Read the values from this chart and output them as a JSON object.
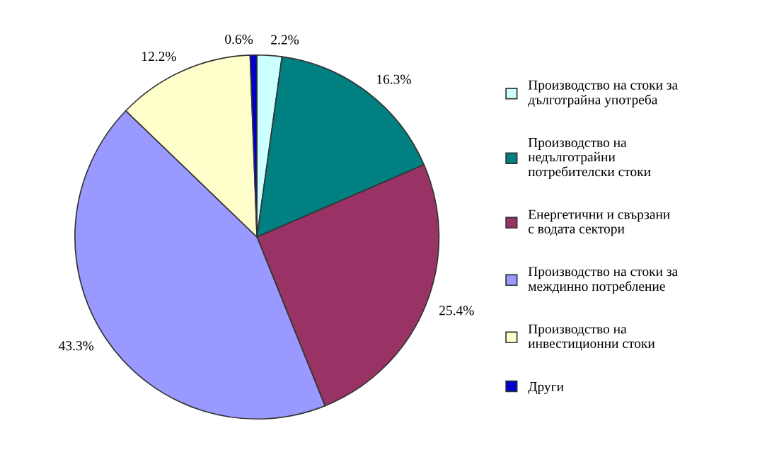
{
  "chart_data": {
    "type": "pie",
    "categories": [
      "Производство на стоки за\nдълготрайна употреба",
      "Производство на\nнедълготрайни\nпотребителски стоки",
      "Енергетични и свързани\nс водата сектори",
      "Производство на стоки за\nмеждинно потребление",
      "Производство на\nинвестиционни стоки",
      "Други"
    ],
    "values": [
      2.2,
      16.3,
      25.4,
      43.3,
      12.2,
      0.6
    ],
    "colors": [
      "#ccffff",
      "#008080",
      "#993366",
      "#9999ff",
      "#ffffcc",
      "#0000cc"
    ],
    "value_labels": [
      "2.2%",
      "16.3%",
      "25.4%",
      "43.3%",
      "12.2%",
      "0.6%"
    ],
    "legend": "right"
  }
}
